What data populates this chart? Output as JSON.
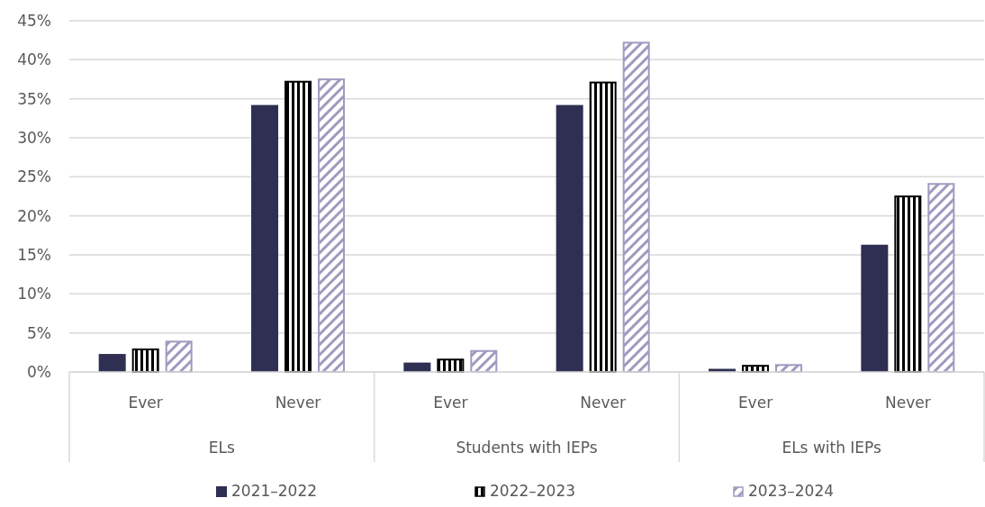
{
  "chart_data": {
    "type": "bar",
    "categories": [
      "Ever",
      "Never",
      "Ever",
      "Never",
      "Ever",
      "Never"
    ],
    "series": [
      {
        "name": "2021–2022",
        "color": "#2e2f52",
        "values": [
          2.3,
          34.2,
          1.2,
          34.2,
          0.4,
          16.3
        ]
      },
      {
        "name": "2022–2023",
        "color": "#000000",
        "values": [
          3.0,
          37.3,
          1.7,
          37.2,
          0.9,
          22.6
        ]
      },
      {
        "name": "2023–2024",
        "color": "#9f9abf",
        "values": [
          4.0,
          37.6,
          2.8,
          42.3,
          1.0,
          24.2
        ]
      }
    ],
    "annotations": [
      "ELs",
      "Students with IEPs",
      "ELs with IEPs"
    ],
    "ylim": [
      0,
      45
    ],
    "yticks": [
      {
        "value": 0,
        "label": "0%"
      },
      {
        "value": 5,
        "label": "5%"
      },
      {
        "value": 10,
        "label": "10%"
      },
      {
        "value": 15,
        "label": "15%"
      },
      {
        "value": 20,
        "label": "20%"
      },
      {
        "value": 25,
        "label": "25%"
      },
      {
        "value": 30,
        "label": "30%"
      },
      {
        "value": 35,
        "label": "35%"
      },
      {
        "value": 40,
        "label": "40%"
      },
      {
        "value": 45,
        "label": "45%"
      }
    ],
    "grid": "y",
    "legend": "bottom"
  }
}
